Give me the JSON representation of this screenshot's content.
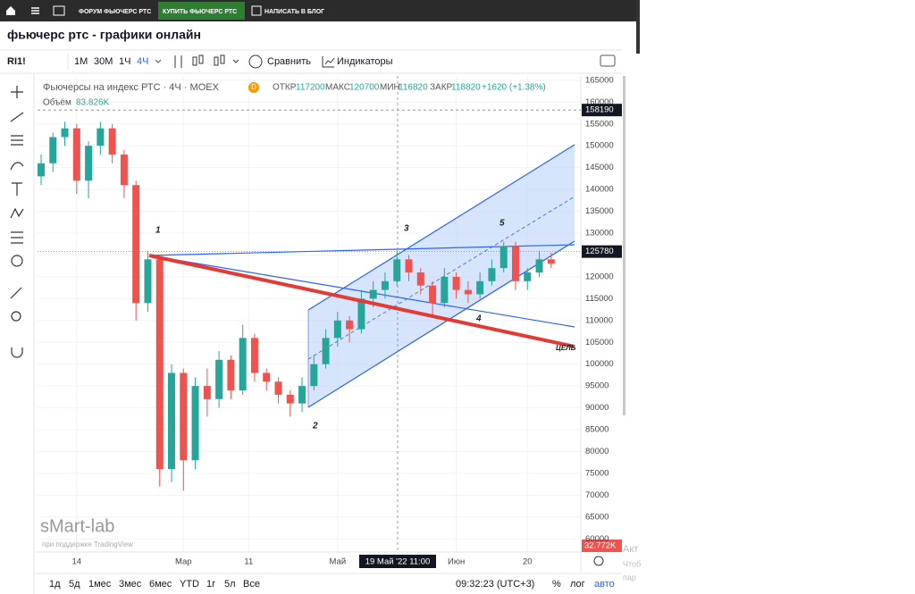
{
  "nav": {
    "forum": "ФОРУМ ФЬЮЧЕРС РТС",
    "buy": "КУПИТЬ ФЬЮЧЕРС РТС",
    "blog": "НАПИСАТЬ В БЛОГ"
  },
  "page_title": "фьючерс ртс - графики онлайн",
  "toolbar": {
    "symbol": "RI1!",
    "intervals": [
      "1M",
      "30M",
      "1Ч",
      "4Ч"
    ],
    "compare": "Сравнить",
    "indicators": "Индикаторы"
  },
  "chart_data": {
    "type": "candlestick",
    "title": "Фьючерсы на индекс РТС · 4Ч · MOEX",
    "badge": "D",
    "ohlc_legend": {
      "open_label": "ОТКР",
      "open": 117200,
      "high_label": "МАКС",
      "high": 120700,
      "low_label": "МИН",
      "low": 116820,
      "close_label": "ЗАКР",
      "close": 118820,
      "change": "+1620 (+1.38%)"
    },
    "volume_label": "Объём",
    "volume": "83.826K",
    "volume_tag": "32.772K",
    "open": [
      143000,
      146000,
      152000,
      154000,
      142000,
      150000,
      154000,
      148000,
      141000,
      114000,
      124000,
      76000,
      98000,
      78000,
      95000,
      92000,
      101000,
      94000,
      106000,
      98000,
      96000,
      93000,
      91000,
      95000,
      100000,
      106000,
      110000,
      108000,
      115000,
      117000,
      119000,
      124000,
      121000,
      118000,
      114000,
      120000,
      117000,
      116000,
      119000,
      122000,
      127000,
      119000,
      121000,
      124000
    ],
    "high": [
      148000,
      153000,
      155500,
      155000,
      151000,
      155500,
      155000,
      149000,
      142000,
      126000,
      125000,
      100000,
      99000,
      97000,
      99000,
      103000,
      102000,
      109000,
      107000,
      99000,
      97000,
      94000,
      97000,
      102000,
      108000,
      112000,
      111000,
      117000,
      119000,
      121000,
      126000,
      125000,
      122000,
      119000,
      122000,
      121000,
      119000,
      121000,
      124000,
      128000,
      128000,
      122000,
      126000,
      125500
    ],
    "low": [
      141000,
      144000,
      150000,
      139000,
      138000,
      148000,
      146000,
      138000,
      110000,
      112000,
      72000,
      73000,
      71000,
      76000,
      88000,
      90000,
      92000,
      93000,
      96000,
      94000,
      91000,
      88000,
      89000,
      94000,
      99000,
      104000,
      105000,
      107000,
      113000,
      115000,
      118000,
      119000,
      116000,
      111000,
      113000,
      115000,
      114000,
      115000,
      118000,
      121000,
      117000,
      117000,
      120000,
      122000
    ],
    "close": [
      146000,
      152000,
      154000,
      142000,
      150000,
      154000,
      148000,
      141000,
      114000,
      124000,
      76000,
      98000,
      78000,
      95000,
      92000,
      101000,
      94000,
      106000,
      98000,
      96000,
      93000,
      91000,
      95000,
      100000,
      106000,
      110000,
      108000,
      115000,
      117000,
      119000,
      124000,
      121000,
      118000,
      114000,
      120000,
      117000,
      116000,
      119000,
      122000,
      127000,
      119000,
      121000,
      124000,
      123000
    ],
    "up_color": "#26a69a",
    "down_color": "#ef5350",
    "xlim": [
      -0.3,
      45.5
    ],
    "ylim": [
      57600,
      166000
    ],
    "yticks": [
      60000,
      65000,
      70000,
      75000,
      80000,
      85000,
      90000,
      95000,
      100000,
      105000,
      110000,
      115000,
      120000,
      125000,
      130000,
      135000,
      140000,
      145000,
      150000,
      155000,
      160000,
      165000
    ],
    "xticks": [
      {
        "value": 3,
        "label": "14"
      },
      {
        "value": 12,
        "label": "Мар"
      },
      {
        "value": 17.5,
        "label": "11"
      },
      {
        "value": 25,
        "label": "Май"
      },
      {
        "value": 35,
        "label": "Июн"
      },
      {
        "value": 41,
        "label": "20"
      }
    ],
    "price_tags": [
      158190,
      125780
    ],
    "crosshair_label": "19 Май '22 11:00",
    "wave_labels": [
      "1",
      "2",
      "3",
      "4",
      "5"
    ],
    "target_label": "ЦЕЛЬ",
    "watermark": "sMart-lab",
    "powered": "при поддержке TradingView"
  },
  "range_buttons": [
    "1д",
    "5д",
    "1мес",
    "3мес",
    "6мес",
    "YTD",
    "1г",
    "5л",
    "Все"
  ],
  "clock": "09:32:23 (UTC+3)",
  "scale_buttons": [
    "%",
    "лог",
    "авто"
  ],
  "os_overlay": [
    "Акт",
    "Чтоб",
    "пар"
  ]
}
